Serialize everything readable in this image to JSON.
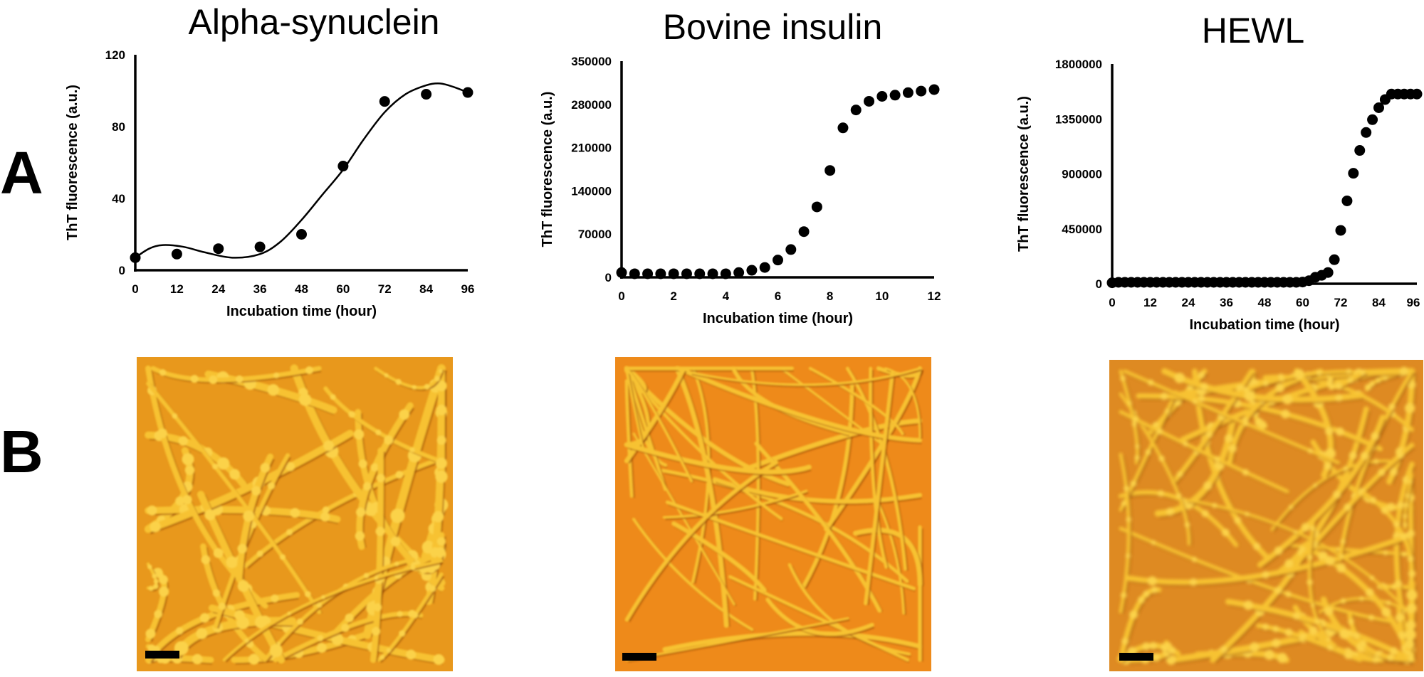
{
  "panel_labels": {
    "a": "A",
    "b": "B"
  },
  "colors": {
    "axis": "#000000",
    "afm_alpha": "#e8981c",
    "afm_insulin": "#ee8a1a",
    "afm_hewl": "#de8a22",
    "fibril": "#f7c233"
  },
  "chart_data": [
    {
      "type": "scatter",
      "title": "Alpha-synuclein",
      "xlabel": "Incubation time (hour)",
      "ylabel": "ThT fluorescence (a.u.)",
      "xlim": [
        0,
        96
      ],
      "ylim": [
        0,
        120
      ],
      "xticks": [
        0,
        12,
        24,
        36,
        48,
        60,
        72,
        84,
        96
      ],
      "yticks": [
        0,
        40,
        80,
        120
      ],
      "grid": false,
      "x": [
        0,
        12,
        24,
        36,
        48,
        60,
        72,
        84,
        96
      ],
      "y": [
        7,
        9,
        12,
        13,
        20,
        58,
        94,
        98,
        99
      ],
      "fit_curve": {
        "x": [
          0,
          4,
          8,
          14,
          20,
          28,
          36,
          42,
          48,
          54,
          60,
          66,
          72,
          78,
          84,
          88,
          92,
          96
        ],
        "y": [
          7,
          12,
          14,
          13,
          10,
          7,
          9,
          16,
          28,
          42,
          56,
          73,
          88,
          98,
          103,
          104,
          102,
          99
        ]
      }
    },
    {
      "type": "scatter",
      "title": "Bovine insulin",
      "xlabel": "Incubation time (hour)",
      "ylabel": "ThT fluorescence (a.u.)",
      "xlim": [
        0,
        12
      ],
      "ylim": [
        0,
        350000
      ],
      "xticks": [
        0,
        2,
        4,
        6,
        8,
        10,
        12
      ],
      "yticks": [
        0,
        70000,
        140000,
        210000,
        280000,
        350000
      ],
      "grid": false,
      "x": [
        0,
        0.5,
        1,
        1.5,
        2,
        2.5,
        3,
        3.5,
        4,
        4.5,
        5,
        5.5,
        6,
        6.5,
        7,
        7.5,
        8,
        8.5,
        9,
        9.5,
        10,
        10.5,
        11,
        11.5,
        12
      ],
      "y": [
        7700,
        5800,
        5800,
        5800,
        5800,
        5800,
        5800,
        5800,
        5800,
        7700,
        11500,
        16000,
        28000,
        45000,
        74000,
        114000,
        173000,
        242000,
        271000,
        285000,
        293000,
        295000,
        299000,
        301500,
        304000
      ]
    },
    {
      "type": "scatter",
      "title": "HEWL",
      "xlabel": "Incubation time (hour)",
      "ylabel": "ThT fluorescence (a.u.)",
      "xlim": [
        0,
        96
      ],
      "ylim": [
        0,
        1800000
      ],
      "xticks": [
        0,
        12,
        24,
        36,
        48,
        60,
        72,
        84,
        96
      ],
      "yticks": [
        0,
        450000,
        900000,
        1350000,
        1800000
      ],
      "grid": false,
      "x": [
        0,
        2,
        4,
        6,
        8,
        10,
        12,
        14,
        16,
        18,
        20,
        22,
        24,
        26,
        28,
        30,
        32,
        34,
        36,
        38,
        40,
        42,
        44,
        46,
        48,
        50,
        52,
        54,
        56,
        58,
        60,
        62,
        64,
        66,
        68,
        70,
        72,
        74,
        76,
        78,
        80,
        82,
        84,
        86,
        88,
        90,
        92,
        94,
        96
      ],
      "y": [
        8000,
        12000,
        12000,
        12000,
        12000,
        12000,
        12000,
        12000,
        12000,
        12000,
        12000,
        12000,
        12000,
        12000,
        12000,
        12000,
        12000,
        12000,
        12000,
        12000,
        12000,
        12000,
        12000,
        12000,
        12000,
        12000,
        12000,
        12000,
        12000,
        12000,
        14000,
        25000,
        53000,
        69000,
        92000,
        197000,
        437000,
        679000,
        905000,
        1092000,
        1239000,
        1344000,
        1442000,
        1509000,
        1554000,
        1554000,
        1554000,
        1554000,
        1554000
      ]
    }
  ]
}
